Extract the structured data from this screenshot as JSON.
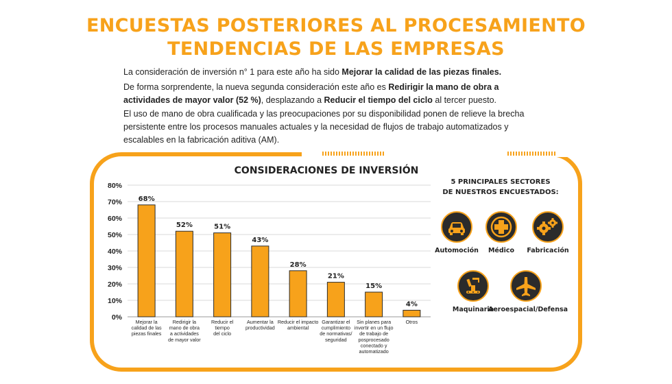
{
  "header": {
    "title_line1": "ENCUESTAS POSTERIORES AL PROCESAMIENTO",
    "title_line2": "TENDENCIAS DE LAS EMPRESAS"
  },
  "intro": {
    "p1_text": "La consideración de inversión n° 1 para este año ha sido ",
    "p1_bold": "Mejorar la calidad de las piezas finales.",
    "p2_text_a": "De forma sorprendente, la nueva segunda consideración este año es ",
    "p2_bold_a": "Redirigir la mano de obra a actividades de mayor valor (52 %)",
    "p2_text_b": ", desplazando a ",
    "p2_bold_b": "Reducir el tiempo del ciclo",
    "p2_text_c": " al tercer puesto.",
    "p3_text": "El uso de mano de obra cualificada y las preocupaciones por su disponibilidad ponen de relieve la brecha persistente entre los procesos manuales actuales y la necesidad de flujos de trabajo automatizados y escalables en la fabricación aditiva (AM)."
  },
  "colors": {
    "accent": "#f7a21b",
    "icon_bg": "#2b2b2b",
    "grid": "#d9d9d9"
  },
  "chart_data": {
    "type": "bar",
    "title": "CONSIDERACIONES DE INVERSIÓN",
    "categories": [
      [
        "Mejorar la",
        "calidad de las",
        "piezas finales"
      ],
      [
        "Redirigir la",
        "mano de obra",
        "a actividades",
        "de mayor valor"
      ],
      [
        "Reducir el",
        "tiempo",
        "del ciclo"
      ],
      [
        "Aumentar la",
        "productividad"
      ],
      [
        "Reducir el impacto",
        "ambiental"
      ],
      [
        "Garantizar el",
        "cumplimiento",
        "de normativas/",
        "seguridad"
      ],
      [
        "Sin planes para",
        "invertir en un flujo",
        "de trabajo de",
        "posprocesado",
        "conectado y",
        "automatizado"
      ],
      [
        "Otros"
      ]
    ],
    "values": [
      68,
      52,
      51,
      43,
      28,
      21,
      15,
      4
    ],
    "value_labels": [
      "68%",
      "52%",
      "51%",
      "43%",
      "28%",
      "21%",
      "15%",
      "4%"
    ],
    "y_ticks": [
      "0%",
      "10%",
      "20%",
      "30%",
      "40%",
      "50%",
      "60%",
      "70%",
      "80%"
    ],
    "ylim": [
      0,
      80
    ],
    "grid": true,
    "xlabel": "",
    "ylabel": ""
  },
  "sectors": {
    "title_line1": "5 PRINCIPALES SECTORES",
    "title_line2": "DE NUESTROS ENCUESTADOS:",
    "items": [
      {
        "label": "Automoción",
        "icon": "car-icon"
      },
      {
        "label": "Médico",
        "icon": "medical-cross-icon"
      },
      {
        "label": "Fabricación",
        "icon": "gears-icon"
      },
      {
        "label": "Maquinaria",
        "icon": "robot-arm-icon"
      },
      {
        "label": "Aeroespacial/Defensa",
        "icon": "airplane-icon"
      }
    ]
  }
}
